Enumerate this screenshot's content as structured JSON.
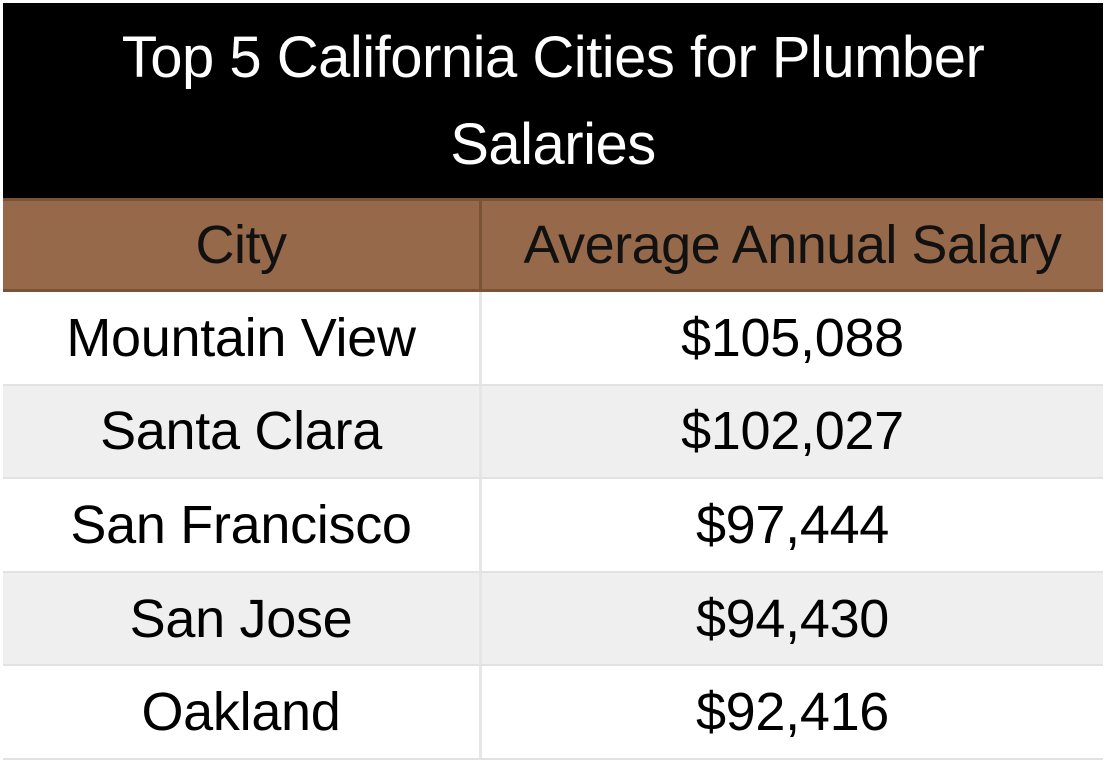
{
  "chart_data": {
    "type": "table",
    "title_lines": [
      "Top 5 California Cities for Plumber",
      "Salaries"
    ],
    "columns": [
      "City",
      "Average Annual Salary"
    ],
    "rows": [
      {
        "city": "Mountain View",
        "salary": "$105,088"
      },
      {
        "city": "Santa Clara",
        "salary": "$102,027"
      },
      {
        "city": "San Francisco",
        "salary": "$97,444"
      },
      {
        "city": "San Jose",
        "salary": "$94,430"
      },
      {
        "city": "Oakland",
        "salary": "$92,416"
      }
    ],
    "colors": {
      "title_background": "#000000",
      "title_text": "#ffffff",
      "header_background": "#96694a",
      "row_alt_background": "#efefef"
    }
  }
}
